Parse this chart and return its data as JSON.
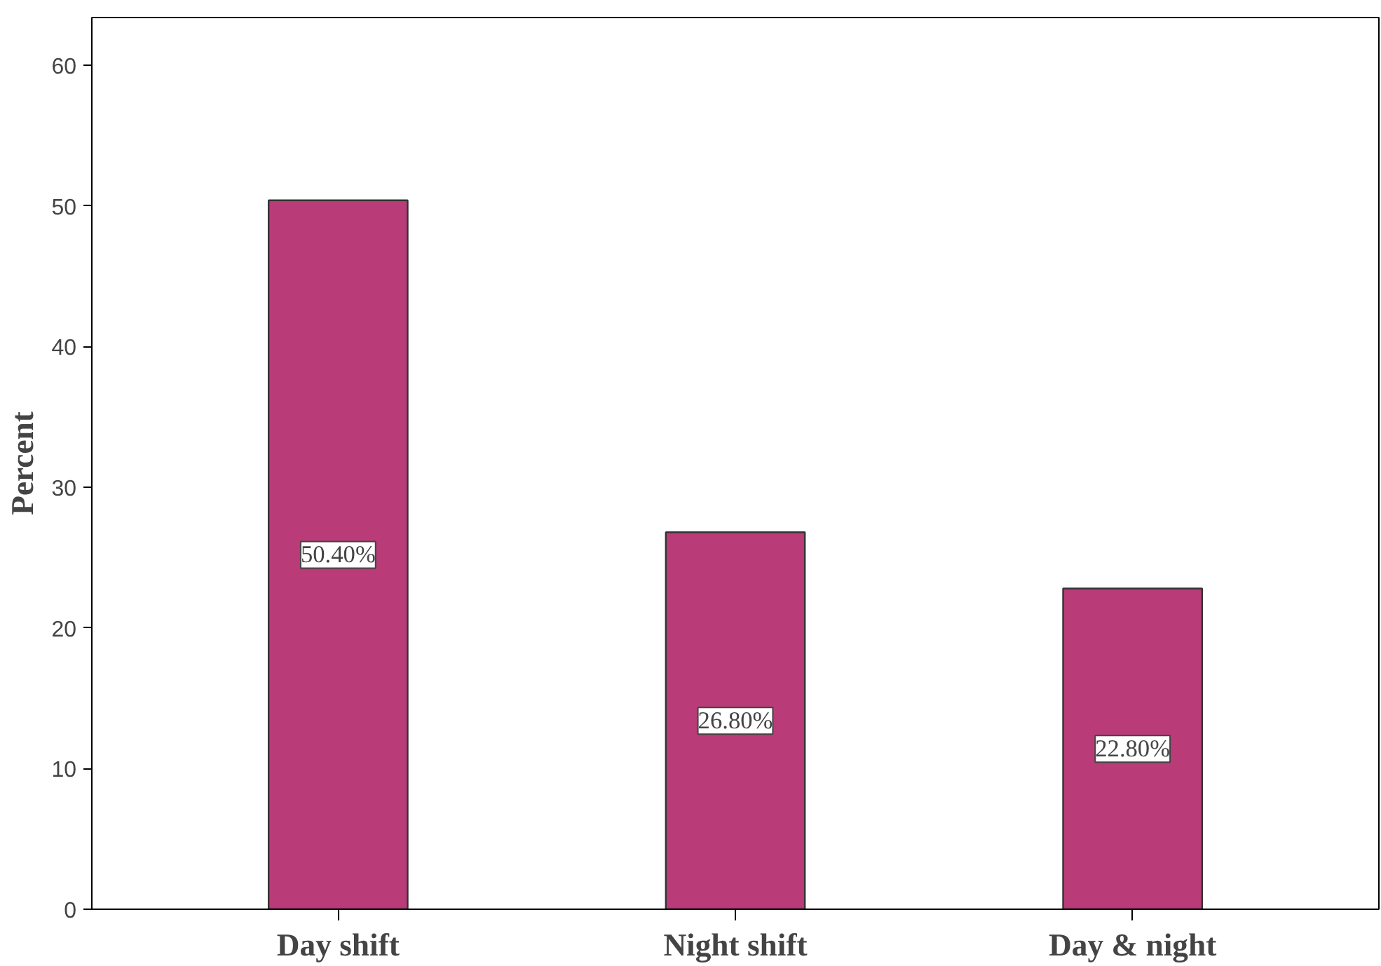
{
  "chart_data": {
    "type": "bar",
    "ylabel": "Percent",
    "categories": [
      "Day shift",
      "Night shift",
      "Day & night"
    ],
    "values": [
      50.4,
      26.8,
      22.8
    ],
    "value_labels": [
      "50.40%",
      "26.80%",
      "22.80%"
    ],
    "color": "#b93b78",
    "ylim": [
      0,
      63.4
    ],
    "yticks": [
      0,
      10,
      20,
      30,
      40,
      50,
      60
    ],
    "grid": false
  }
}
